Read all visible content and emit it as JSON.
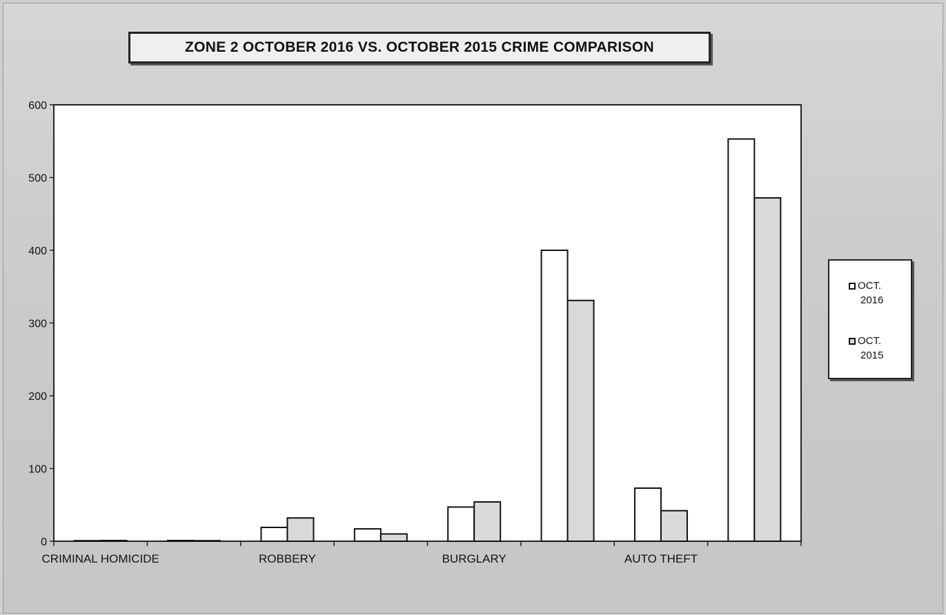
{
  "chart_data": {
    "type": "bar",
    "title": "ZONE 2  OCTOBER 2016 VS. OCTOBER 2015 CRIME COMPARISON",
    "xlabel": "",
    "ylabel": "",
    "ylim": [
      0,
      600
    ],
    "yticks": [
      0,
      100,
      200,
      300,
      400,
      500,
      600
    ],
    "categories": [
      "CRIMINAL HOMICIDE",
      "",
      "ROBBERY",
      "",
      "BURGLARY",
      "",
      "AUTO THEFT",
      ""
    ],
    "series": [
      {
        "name": "OCT. 2016",
        "values": [
          0,
          1,
          19,
          17,
          47,
          400,
          73,
          553
        ],
        "color": "#ffffff"
      },
      {
        "name": "OCT. 2015",
        "values": [
          1,
          0,
          32,
          10,
          54,
          331,
          42,
          472
        ],
        "color": "#d9d9d9"
      }
    ],
    "legend_position": "right",
    "grid": false
  },
  "legend": {
    "items": [
      {
        "line1": "OCT.",
        "line2": "2016",
        "swatch": "#ffffff"
      },
      {
        "line1": "OCT.",
        "line2": "2015",
        "swatch": "#d9d9d9"
      }
    ]
  }
}
